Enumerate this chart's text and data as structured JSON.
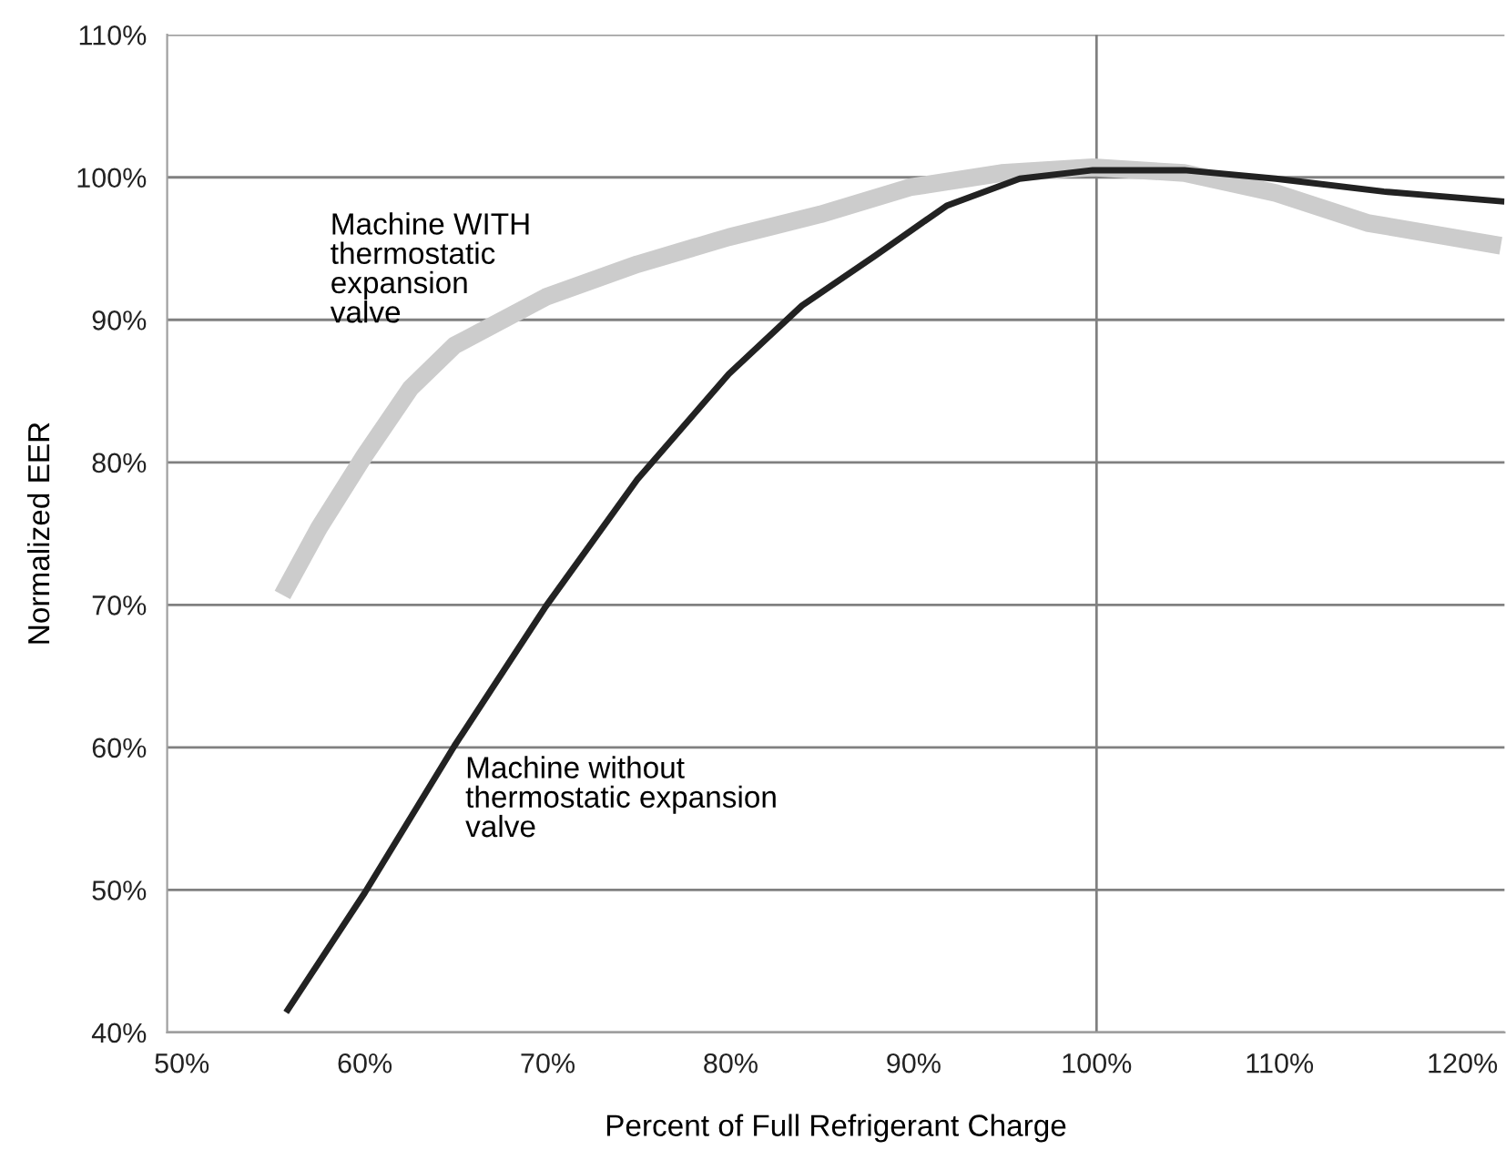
{
  "chart_data": {
    "type": "line",
    "xlabel": "Percent of Full Refrigerant Charge",
    "ylabel": "Normalized EER",
    "xlim": [
      49.2,
      122.3
    ],
    "ylim": [
      40,
      110
    ],
    "xticks": [
      {
        "value": 50,
        "label": "50%"
      },
      {
        "value": 60,
        "label": "60%"
      },
      {
        "value": 70,
        "label": "70%"
      },
      {
        "value": 80,
        "label": "80%"
      },
      {
        "value": 90,
        "label": "90%"
      },
      {
        "value": 100,
        "label": "100%"
      },
      {
        "value": 110,
        "label": "110%"
      },
      {
        "value": 120,
        "label": "120%"
      }
    ],
    "yticks": [
      {
        "value": 40,
        "label": "40%"
      },
      {
        "value": 50,
        "label": "50%"
      },
      {
        "value": 60,
        "label": "60%"
      },
      {
        "value": 70,
        "label": "70%"
      },
      {
        "value": 80,
        "label": "80%"
      },
      {
        "value": 90,
        "label": "90%"
      },
      {
        "value": 100,
        "label": "100%"
      },
      {
        "value": 110,
        "label": "110%"
      }
    ],
    "grid": "y",
    "legend": false,
    "marker": "none",
    "line_style": "solid",
    "ref_lines": [
      {
        "axis": "x",
        "value": 100,
        "label": null,
        "color": "#808080"
      }
    ],
    "series": [
      {
        "name": "Machine WITH\nthermostatic\nexpansion\nvalve",
        "color": "#cccccc",
        "x": [
          55.5,
          57.5,
          60,
          62.5,
          64.9,
          69.9,
          74.9,
          79.9,
          84.9,
          89.8,
          94.8,
          99.8,
          104.8,
          109.8,
          114.8,
          122.1
        ],
        "values": [
          70.7,
          75.4,
          80.5,
          85.2,
          88.2,
          91.6,
          93.9,
          95.8,
          97.4,
          99.3,
          100.3,
          100.7,
          100.3,
          98.9,
          96.8,
          95.2
        ]
      },
      {
        "name": "Machine without\nthermostatic expansion\nvalve",
        "color": "#222222",
        "x": [
          55.7,
          60,
          64.9,
          69.9,
          74.9,
          79.9,
          83.9,
          87.9,
          91.8,
          95.8,
          99.8,
          104.8,
          109.8,
          115.7,
          122.3
        ],
        "values": [
          41.4,
          49.8,
          60.1,
          69.9,
          78.8,
          86.2,
          91.0,
          94.5,
          98.0,
          99.9,
          100.5,
          100.5,
          99.9,
          99.0,
          98.3
        ]
      }
    ]
  }
}
